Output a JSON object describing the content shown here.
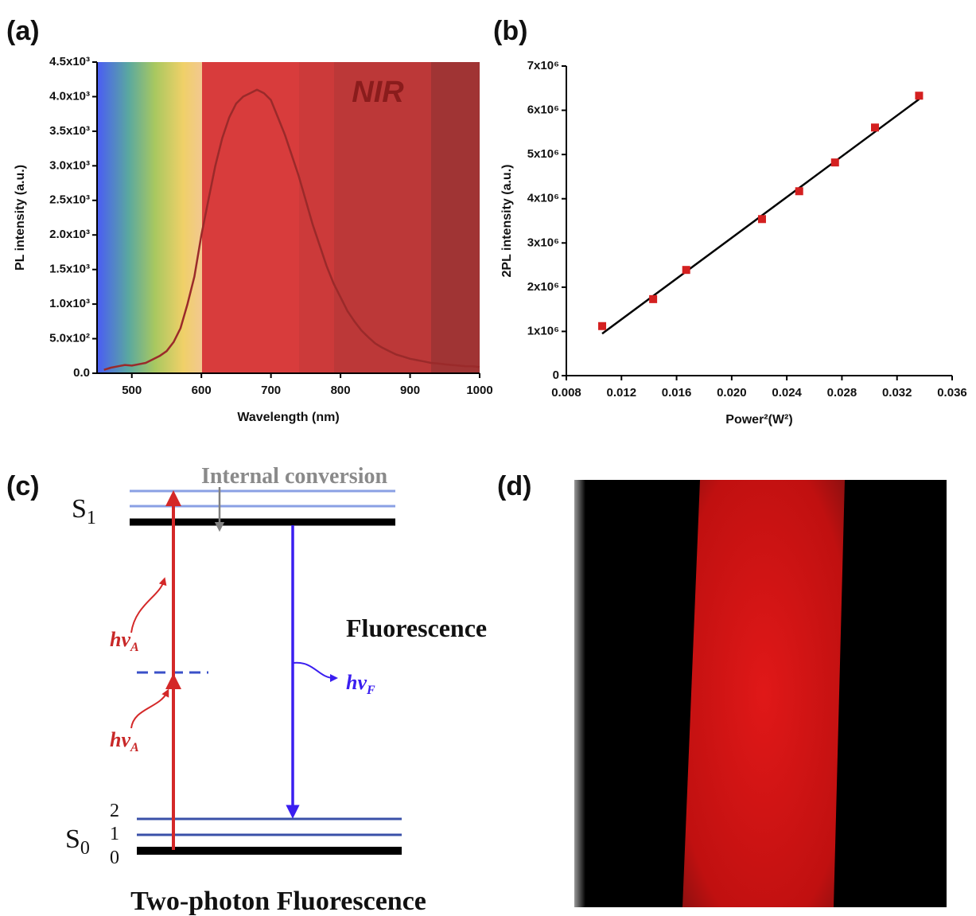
{
  "chart_data": [
    {
      "type": "line",
      "label": "(a)",
      "xlabel": "Wavelength (nm)",
      "ylabel": "PL intensity (a.u.)",
      "annotation": "NIR",
      "color": "#9a2a2a",
      "x": [
        460,
        470,
        480,
        490,
        500,
        510,
        520,
        530,
        540,
        550,
        560,
        570,
        580,
        590,
        600,
        610,
        620,
        630,
        640,
        650,
        660,
        670,
        680,
        690,
        700,
        710,
        720,
        730,
        740,
        750,
        760,
        770,
        780,
        790,
        800,
        810,
        820,
        830,
        840,
        850,
        860,
        870,
        880,
        890,
        900,
        910,
        920,
        930,
        940,
        950,
        960,
        970,
        980,
        990,
        1000
      ],
      "values": [
        50,
        80,
        100,
        120,
        110,
        130,
        150,
        200,
        250,
        320,
        450,
        650,
        1000,
        1400,
        2000,
        2500,
        3000,
        3400,
        3700,
        3900,
        4000,
        4050,
        4100,
        4050,
        3950,
        3700,
        3450,
        3150,
        2850,
        2500,
        2150,
        1850,
        1550,
        1300,
        1100,
        900,
        750,
        620,
        520,
        430,
        370,
        320,
        270,
        240,
        210,
        190,
        170,
        150,
        140,
        130,
        120,
        110,
        100,
        100,
        90
      ],
      "xlim": [
        450,
        1000
      ],
      "xticks": [
        500,
        600,
        700,
        800,
        900,
        1000
      ],
      "ylim": [
        0,
        4500
      ],
      "yticks": [
        {
          "value": 0,
          "label": "0.0"
        },
        {
          "value": 500,
          "label": "5.0x10²"
        },
        {
          "value": 1000,
          "label": "1.0x10³"
        },
        {
          "value": 1500,
          "label": "1.5x10³"
        },
        {
          "value": 2000,
          "label": "2.0x10³"
        },
        {
          "value": 2500,
          "label": "2.5x10³"
        },
        {
          "value": 3000,
          "label": "3.0x10³"
        },
        {
          "value": 3500,
          "label": "3.5x10³"
        },
        {
          "value": 4000,
          "label": "4.0x10³"
        },
        {
          "value": 4500,
          "label": "4.5x10³"
        }
      ]
    },
    {
      "type": "scatter",
      "label": "(b)",
      "xlabel": "Power²(W²)",
      "ylabel": "2PL intensity (a.u.)",
      "color": "#d42020",
      "x": [
        0.0106,
        0.0143,
        0.0167,
        0.0222,
        0.0249,
        0.0275,
        0.0304,
        0.0336
      ],
      "values": [
        1120000,
        1730000,
        2390000,
        3540000,
        4170000,
        4820000,
        5610000,
        6330000
      ],
      "fit_line": {
        "x": [
          0.0106,
          0.0336
        ],
        "values": [
          950000,
          6250000
        ],
        "color": "#000000"
      },
      "xlim": [
        0.008,
        0.036
      ],
      "xticks": [
        0.008,
        0.012,
        0.016,
        {
          "value": 0.02,
          "label": "0.020"
        },
        0.024,
        0.028,
        0.032,
        0.036
      ],
      "ylim": [
        0,
        7000000
      ],
      "yticks": [
        0,
        {
          "value": 1000000,
          "label": "1x10⁶"
        },
        {
          "value": 2000000,
          "label": "2x10⁶"
        },
        {
          "value": 3000000,
          "label": "3x10⁶"
        },
        {
          "value": 4000000,
          "label": "4x10⁶"
        },
        {
          "value": 5000000,
          "label": "5x10⁶"
        },
        {
          "value": 6000000,
          "label": "6x10⁶"
        },
        {
          "value": 7000000,
          "label": "7x10⁶"
        }
      ]
    }
  ],
  "diagram": {
    "label": "(c)",
    "internal_conversion": "Internal conversion",
    "s1": {
      "text": "S",
      "sub": "1"
    },
    "s0": {
      "text": "S",
      "sub": "0"
    },
    "levels": [
      "2",
      "1",
      "0"
    ],
    "fluorescence": "Fluorescence",
    "hv_a": {
      "text": "hv",
      "sub": "A"
    },
    "hv_f": {
      "text": "hv",
      "sub": "F"
    },
    "caption": "Two-photon Fluorescence"
  },
  "image": {
    "label": "(d)"
  }
}
